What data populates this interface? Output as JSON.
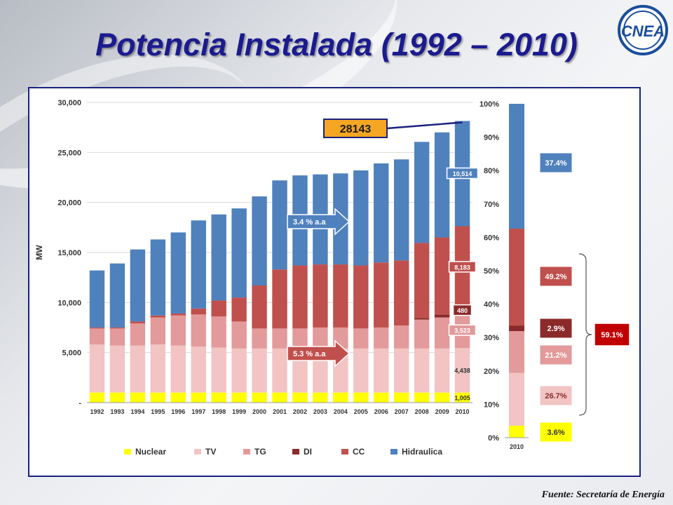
{
  "title": "Potencia Instalada (1992 – 2010)",
  "logo": {
    "text": "CNEA",
    "icon": "cnea-logo"
  },
  "source": "Fuente: Secretaría de Energía",
  "chart_data": [
    {
      "type": "bar",
      "stacked": true,
      "ylabel": "MW",
      "ylim": [
        0,
        30000
      ],
      "yticks": [
        0,
        5000,
        10000,
        15000,
        20000,
        25000,
        30000
      ],
      "ytick_labels": [
        "-",
        "5,000",
        "10,000",
        "15,000",
        "20,000",
        "25,000",
        "30,000"
      ],
      "grid": true,
      "legend_position": "bottom",
      "categories": [
        "1992",
        "1993",
        "1994",
        "1995",
        "1996",
        "1997",
        "1998",
        "1999",
        "2000",
        "2001",
        "2002",
        "2003",
        "2004",
        "2005",
        "2006",
        "2007",
        "2008",
        "2009",
        "2010"
      ],
      "series": [
        {
          "name": "Nuclear",
          "color": "#ffff00",
          "values": [
            1005,
            1005,
            1005,
            1005,
            1005,
            1005,
            1005,
            1005,
            1005,
            1005,
            1005,
            1005,
            1005,
            1005,
            1005,
            1005,
            1005,
            1005,
            1005
          ]
        },
        {
          "name": "TV",
          "color": "#f2c4c4",
          "values": [
            4800,
            4700,
            4700,
            4800,
            4700,
            4600,
            4500,
            4400,
            4400,
            4400,
            4400,
            4400,
            4400,
            4400,
            4400,
            4400,
            4400,
            4400,
            4438
          ]
        },
        {
          "name": "TG",
          "color": "#e39a9a",
          "values": [
            1600,
            1700,
            2200,
            2700,
            3000,
            3200,
            3100,
            2700,
            2000,
            2000,
            2000,
            2100,
            2100,
            2000,
            2100,
            2300,
            2900,
            3100,
            3523
          ]
        },
        {
          "name": "DI",
          "color": "#8b2a2a",
          "values": [
            0,
            0,
            0,
            0,
            0,
            0,
            0,
            0,
            0,
            0,
            0,
            0,
            0,
            0,
            0,
            0,
            150,
            300,
            480
          ]
        },
        {
          "name": "CC",
          "color": "#c0504d",
          "values": [
            100,
            100,
            200,
            200,
            200,
            600,
            1600,
            2400,
            4300,
            5900,
            6300,
            6300,
            6300,
            6300,
            6500,
            6500,
            7500,
            7700,
            8183
          ]
        },
        {
          "name": "Hidraulica",
          "color": "#4f81bd",
          "values": [
            5700,
            6400,
            7200,
            7600,
            8100,
            8800,
            8600,
            8900,
            8900,
            8900,
            9000,
            9000,
            9100,
            9500,
            9900,
            10100,
            10100,
            10500,
            10514
          ]
        }
      ],
      "annotations": [
        {
          "text": "3.4 % a.a",
          "target_series": "Hidraulica"
        },
        {
          "text": "5.3 % a.a",
          "target_series": "TV"
        },
        {
          "text": "28143",
          "year": "2010",
          "value": 28143
        }
      ],
      "data_labels": [
        {
          "series": "Hidraulica",
          "text": "10,514",
          "boxed": true
        },
        {
          "series": "CC",
          "text": "8,183",
          "boxed": true
        },
        {
          "series": "DI",
          "text": "480",
          "boxed": true
        },
        {
          "series": "TG",
          "text": "3,523",
          "boxed": true
        },
        {
          "series": "TV",
          "text": "4,438",
          "boxed": false
        },
        {
          "series": "Nuclear",
          "text": "1,005",
          "boxed": false
        }
      ]
    },
    {
      "type": "bar",
      "stacked": true,
      "percent": true,
      "categories": [
        "2010"
      ],
      "ylim": [
        0,
        100
      ],
      "yticks": [
        0,
        10,
        20,
        30,
        40,
        50,
        60,
        70,
        80,
        90,
        100
      ],
      "ytick_labels": [
        "0%",
        "10%",
        "20%",
        "30%",
        "40%",
        "50%",
        "60%",
        "70%",
        "80%",
        "90%",
        "100%"
      ],
      "series": [
        {
          "name": "Nuclear",
          "color": "#ffff00",
          "values": [
            3.6
          ],
          "label": "3.6%"
        },
        {
          "name": "TV",
          "color": "#f2c4c4",
          "values": [
            15.8
          ],
          "label": "26.7%"
        },
        {
          "name": "TG",
          "color": "#e39a9a",
          "values": [
            12.5
          ],
          "label": "21.2%"
        },
        {
          "name": "DI",
          "color": "#8b2a2a",
          "values": [
            1.7
          ],
          "label": "2.9%"
        },
        {
          "name": "CC",
          "color": "#c0504d",
          "values": [
            29.0
          ],
          "label": "49.2%"
        },
        {
          "name": "Hidraulica",
          "color": "#4f81bd",
          "values": [
            37.4
          ],
          "label": "37.4%"
        }
      ],
      "group_label": {
        "text": "59.1%",
        "spans": [
          "TV",
          "TG",
          "DI",
          "CC"
        ]
      }
    }
  ]
}
